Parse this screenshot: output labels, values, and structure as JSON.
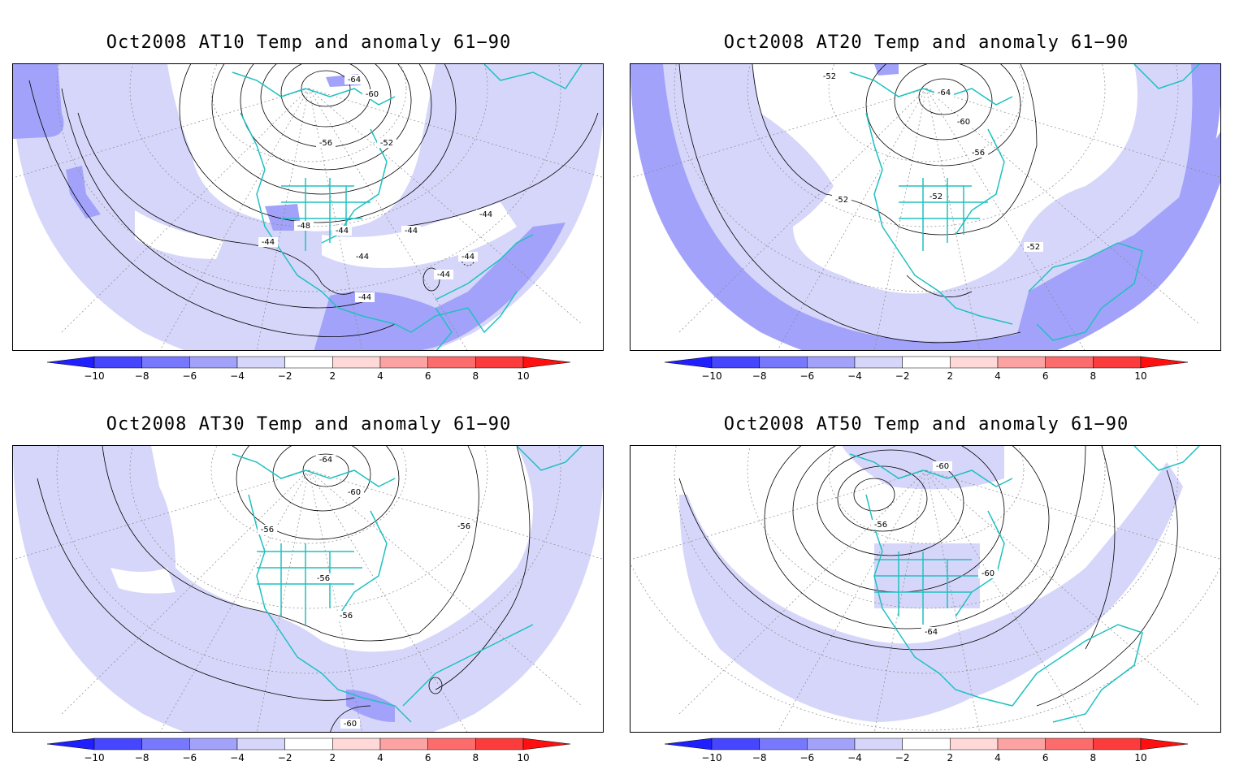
{
  "colors": {
    "land_outline": "#20c0c0",
    "contour": "#000000",
    "graticule": "#888888",
    "anom_lt_m10": "#2020ff",
    "anom_m10_m8": "#4646ff",
    "anom_m8_m6": "#7878ff",
    "anom_m6_m4": "#a2a2fa",
    "anom_m4_m2": "#d6d6fa",
    "anom_m2_2": "#ffffff",
    "anom_2_4": "#ffd8d8",
    "anom_4_6": "#fca2a2",
    "anom_6_8": "#fc6c6c",
    "anom_8_10": "#fc3c3c",
    "anom_gt_10": "#ff1010"
  },
  "colorbar": {
    "tick_labels": [
      "−10",
      "−8",
      "−6",
      "−4",
      "−2",
      "2",
      "4",
      "6",
      "8",
      "10"
    ]
  },
  "panels": [
    {
      "title": "Oct2008 AT10 Temp and anomaly 61−90",
      "contour_labels": [
        "-64",
        "-60",
        "-56",
        "-52",
        "-48",
        "-44",
        "-44",
        "-44",
        "-44",
        "-44",
        "-44",
        "-44",
        "-44"
      ]
    },
    {
      "title": "Oct2008 AT20 Temp and anomaly 61−90",
      "contour_labels": [
        "-52",
        "-64",
        "-60",
        "-56",
        "-52",
        "-52",
        "-52"
      ]
    },
    {
      "title": "Oct2008 AT30 Temp and anomaly 61−90",
      "contour_labels": [
        "-64",
        "-60",
        "-56",
        "-56",
        "-56",
        "-56",
        "-60"
      ]
    },
    {
      "title": "Oct2008 AT50 Temp and anomaly 61−90",
      "contour_labels": [
        "-60",
        "-56",
        "-60",
        "-64"
      ]
    }
  ]
}
